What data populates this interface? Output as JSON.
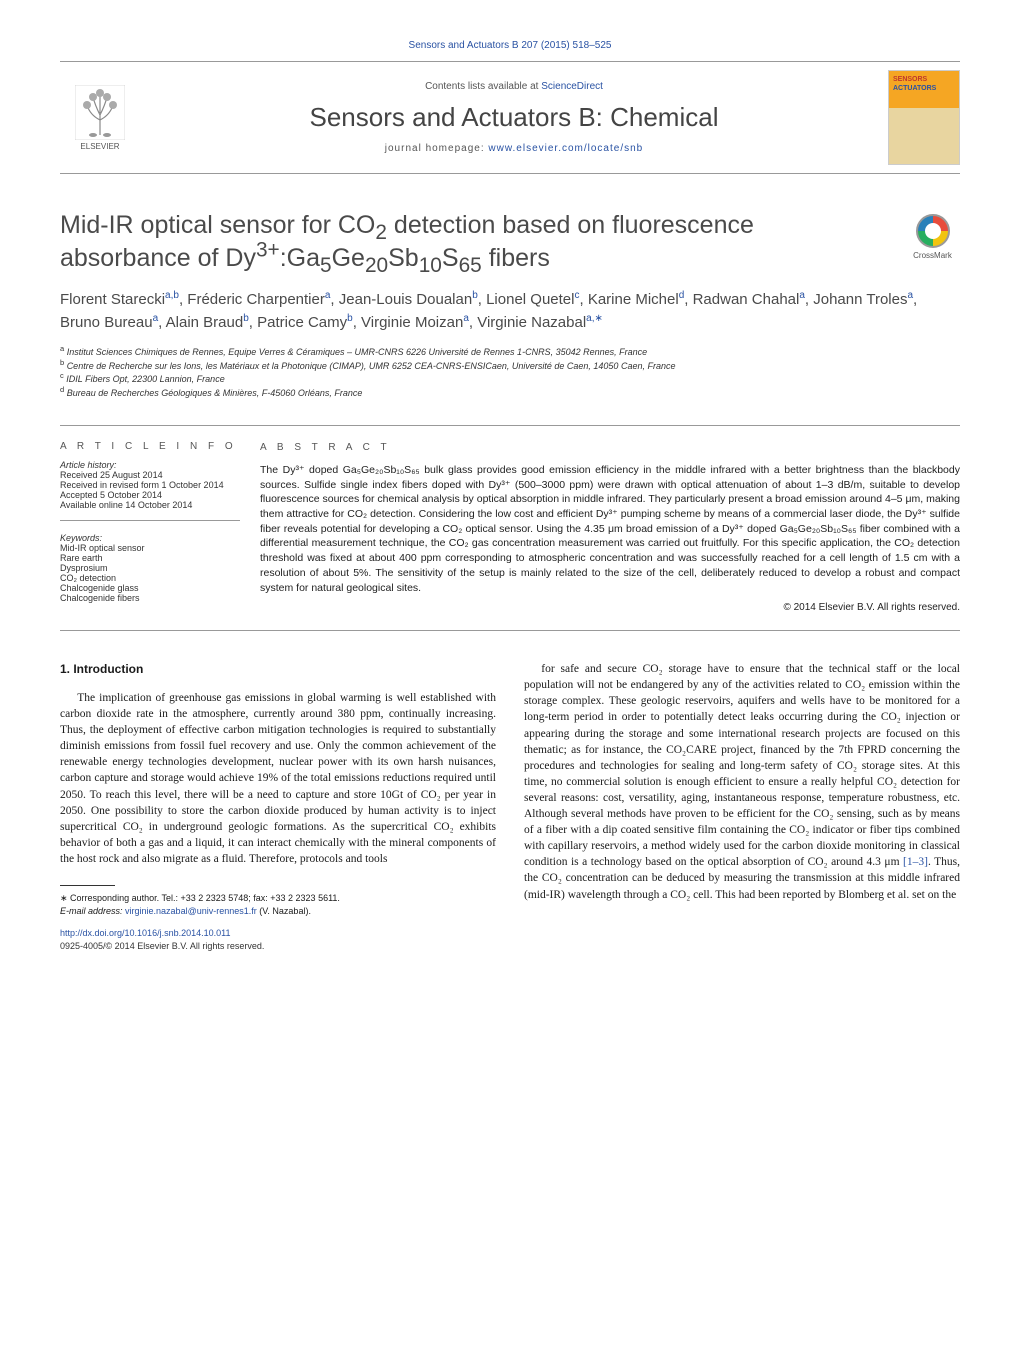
{
  "header": {
    "citation": "Sensors and Actuators B 207 (2015) 518–525",
    "contents_prefix": "Contents lists available at ",
    "contents_link": "ScienceDirect",
    "journal_name": "Sensors and Actuators B: Chemical",
    "homepage_prefix": "journal homepage: ",
    "homepage_link": "www.elsevier.com/locate/snb",
    "publisher": "ELSEVIER",
    "cover_label1": "SENSORS",
    "cover_label2": "ACTUATORS"
  },
  "crossmark": "CrossMark",
  "title_parts": {
    "p1": "Mid-IR optical sensor for CO",
    "p2": " detection based on fluorescence absorbance of Dy",
    "p3": ":Ga",
    "p4": "Ge",
    "p5": "Sb",
    "p6": "S",
    "p7": " fibers",
    "sub_co2": "2",
    "sup_dy": "3+",
    "sub_ga": "5",
    "sub_ge": "20",
    "sub_sb": "10",
    "sub_s": "65"
  },
  "authors_html": "Florent Starecki<sup>a,b</sup>, Fréderic Charpentier<sup>a</sup>, Jean-Louis Doualan<sup>b</sup>, Lionel Quetel<sup>c</sup>, Karine Michel<sup>d</sup>, Radwan Chahal<sup>a</sup>, Johann Troles<sup>a</sup>, Bruno Bureau<sup>a</sup>, Alain Braud<sup>b</sup>, Patrice Camy<sup>b</sup>, Virginie Moizan<sup>a</sup>, Virginie Nazabal<sup>a,∗</sup>",
  "affiliations": {
    "a": "Institut Sciences Chimiques de Rennes, Equipe Verres & Céramiques – UMR-CNRS 6226 Université de Rennes 1-CNRS, 35042 Rennes, France",
    "b": "Centre de Recherche sur les Ions, les Matériaux et la Photonique (CIMAP), UMR 6252 CEA-CNRS-ENSICaen, Université de Caen, 14050 Caen, France",
    "c": "IDIL Fibers Opt, 22300 Lannion, France",
    "d": "Bureau de Recherches Géologiques & Minières, F-45060 Orléans, France"
  },
  "article_info": {
    "label": "A R T I C L E    I N F O",
    "history_label": "Article history:",
    "received": "Received 25 August 2014",
    "revised": "Received in revised form 1 October 2014",
    "accepted": "Accepted 5 October 2014",
    "online": "Available online 14 October 2014",
    "keywords_label": "Keywords:",
    "keywords": [
      "Mid-IR optical sensor",
      "Rare earth",
      "Dysprosium",
      "CO₂ detection",
      "Chalcogenide glass",
      "Chalcogenide fibers"
    ]
  },
  "abstract": {
    "label": "A B S T R A C T",
    "text": "The Dy³⁺ doped Ga₅Ge₂₀Sb₁₀S₆₅ bulk glass provides good emission efficiency in the middle infrared with a better brightness than the blackbody sources. Sulfide single index fibers doped with Dy³⁺ (500–3000 ppm) were drawn with optical attenuation of about 1–3 dB/m, suitable to develop fluorescence sources for chemical analysis by optical absorption in middle infrared. They particularly present a broad emission around 4–5 μm, making them attractive for CO₂ detection. Considering the low cost and efficient Dy³⁺ pumping scheme by means of a commercial laser diode, the Dy³⁺ sulfide fiber reveals potential for developing a CO₂ optical sensor. Using the 4.35 μm broad emission of a Dy³⁺ doped Ga₅Ge₂₀Sb₁₀S₆₅ fiber combined with a differential measurement technique, the CO₂ gas concentration measurement was carried out fruitfully. For this specific application, the CO₂ detection threshold was fixed at about 400 ppm corresponding to atmospheric concentration and was successfully reached for a cell length of 1.5 cm with a resolution of about 5%. The sensitivity of the setup is mainly related to the size of the cell, deliberately reduced to develop a robust and compact system for natural geological sites.",
    "copyright": "© 2014 Elsevier B.V. All rights reserved."
  },
  "intro": {
    "heading": "1. Introduction",
    "col1": "The implication of greenhouse gas emissions in global warming is well established with carbon dioxide rate in the atmosphere, currently around 380 ppm, continually increasing. Thus, the deployment of effective carbon mitigation technologies is required to substantially diminish emissions from fossil fuel recovery and use. Only the common achievement of the renewable energy technologies development, nuclear power with its own harsh nuisances, carbon capture and storage would achieve 19% of the total emissions reductions required until 2050. To reach this level, there will be a need to capture and store 10Gt of CO₂ per year in 2050. One possibility to store the carbon dioxide produced by human activity is to inject supercritical CO₂ in underground geologic formations. As the supercritical CO₂ exhibits behavior of both a gas and a liquid, it can interact chemically with the mineral components of the host rock and also migrate as a fluid. Therefore, protocols and tools",
    "col2_p1": "for safe and secure CO₂ storage have to ensure that the technical staff or the local population will not be endangered by any of the activities related to CO₂ emission within the storage complex. These geologic reservoirs, aquifers and wells have to be monitored for a long-term period in order to potentially detect leaks occurring during the CO₂ injection or appearing during the storage and some international research projects are focused on this thematic; as for instance, the CO₂CARE project, financed by the 7th FPRD concerning the procedures and technologies for sealing and long-term safety of CO₂ storage sites. At this time, no commercial solution is enough efficient to ensure a really helpful CO₂ detection for several reasons: cost, versatility, aging, instantaneous response, temperature robustness, etc. Although several methods have proven to be efficient for the CO₂ sensing, such as by means of a fiber with a dip coated sensitive film containing the CO₂ indicator or fiber tips combined with capillary reservoirs, a method widely used for the carbon dioxide monitoring in classical condition is a technology based on the optical absorption of CO₂ around 4.3 μm ",
    "col2_ref": "[1–3]",
    "col2_p2": ". Thus, the CO₂ concentration can be deduced by measuring the transmission at this middle infrared (mid-IR) wavelength through a CO₂ cell. This had been reported by Blomberg et al. set on the"
  },
  "footnotes": {
    "corr": "∗ Corresponding author. Tel.: +33 2 2323 5748; fax: +33 2 2323 5611.",
    "email_label": "E-mail address: ",
    "email": "virginie.nazabal@univ-rennes1.fr",
    "email_suffix": " (V. Nazabal)."
  },
  "doi": {
    "link": "http://dx.doi.org/10.1016/j.snb.2014.10.011",
    "issn_line": "0925-4005/© 2014 Elsevier B.V. All rights reserved."
  },
  "colors": {
    "link": "#2952a3",
    "text": "#1a1a1a",
    "muted": "#555",
    "border": "#999"
  }
}
